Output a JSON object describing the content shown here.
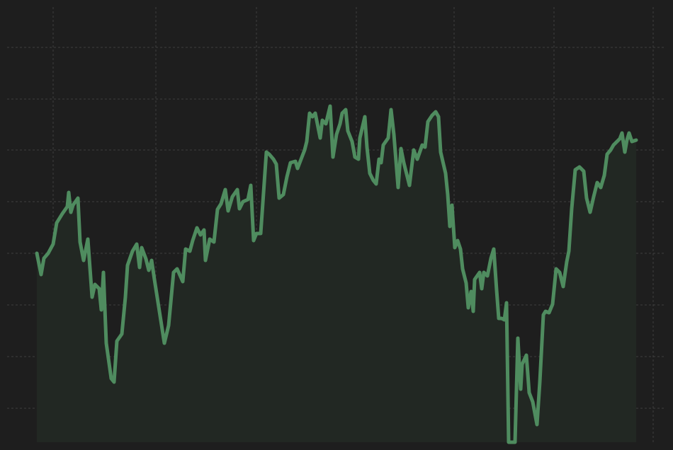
{
  "chart_data": {
    "type": "area",
    "x": [
      42,
      48,
      52,
      58,
      65,
      70,
      78,
      85,
      87,
      90,
      93,
      100,
      103,
      108,
      114,
      120,
      124,
      130,
      133,
      136,
      140,
      147,
      151,
      155,
      162,
      167,
      170,
      177,
      183,
      187,
      190,
      196,
      200,
      204,
      208,
      215,
      222,
      228,
      235,
      240,
      248,
      252,
      258,
      262,
      268,
      273,
      278,
      280,
      286,
      292,
      297,
      302,
      308,
      312,
      318,
      325,
      328,
      333,
      340,
      344,
      348,
      352,
      358,
      366,
      370,
      376,
      380,
      384,
      390,
      395,
      400,
      407,
      410,
      415,
      420,
      423,
      427,
      431,
      435,
      439,
      442,
      445,
      450,
      456,
      460,
      465,
      470,
      473,
      478,
      481,
      487,
      491,
      496,
      498,
      505,
      508,
      512,
      517,
      521,
      525,
      528,
      531,
      538,
      542,
      546,
      552,
      556,
      560,
      568,
      574,
      579,
      586,
      590,
      594,
      600,
      605,
      609,
      612,
      619,
      622,
      625,
      628,
      632,
      636,
      640,
      643,
      648,
      651,
      655,
      658,
      660,
      667,
      670,
      673,
      678,
      683,
      687,
      691,
      694,
      698,
      702,
      705,
      708,
      717,
      721,
      725,
      727,
      733,
      737,
      742,
      748,
      752,
      757,
      760,
      765,
      770,
      775,
      780,
      785,
      790,
      793,
      797,
      802,
      808,
      814,
      818,
      823,
      828,
      833,
      838,
      843,
      847,
      852,
      856,
      861,
      865,
      868,
      872,
      875,
      878,
      882,
      888
    ],
    "values": [
      267,
      237,
      260,
      267,
      280,
      310,
      323,
      333,
      353,
      325,
      335,
      345,
      283,
      257,
      287,
      205,
      223,
      217,
      187,
      240,
      140,
      90,
      85,
      143,
      153,
      205,
      250,
      270,
      280,
      247,
      275,
      259,
      243,
      257,
      230,
      185,
      140,
      165,
      240,
      245,
      227,
      273,
      270,
      285,
      303,
      293,
      300,
      257,
      287,
      283,
      329,
      337,
      357,
      327,
      347,
      357,
      330,
      340,
      343,
      363,
      285,
      295,
      295,
      410,
      407,
      400,
      393,
      345,
      350,
      375,
      395,
      397,
      387,
      400,
      413,
      425,
      465,
      460,
      465,
      445,
      430,
      455,
      450,
      475,
      403,
      435,
      450,
      465,
      470,
      440,
      425,
      403,
      400,
      430,
      460,
      417,
      380,
      370,
      365,
      400,
      395,
      420,
      430,
      470,
      435,
      360,
      415,
      395,
      363,
      413,
      400,
      420,
      417,
      453,
      462,
      467,
      460,
      410,
      380,
      350,
      305,
      335,
      275,
      285,
      273,
      245,
      225,
      190,
      213,
      185,
      230,
      240,
      217,
      240,
      235,
      260,
      273,
      215,
      175,
      175,
      173,
      197,
      0,
      0,
      147,
      75,
      110,
      123,
      70,
      57,
      25,
      85,
      180,
      185,
      183,
      195,
      245,
      240,
      220,
      255,
      270,
      330,
      385,
      389,
      383,
      345,
      325,
      347,
      367,
      360,
      377,
      407,
      413,
      420,
      425,
      429,
      437,
      410,
      427,
      437,
      425,
      427
    ],
    "color": "#4f8c5f",
    "fill_color": "#222823",
    "xlim": [
      0,
      930
    ],
    "ylim": [
      0,
      615
    ],
    "xticks": [
      65,
      210,
      352,
      493,
      631,
      772,
      912
    ],
    "yticks": [
      48,
      121,
      194,
      267,
      340,
      413,
      485,
      558
    ],
    "grid": true
  }
}
